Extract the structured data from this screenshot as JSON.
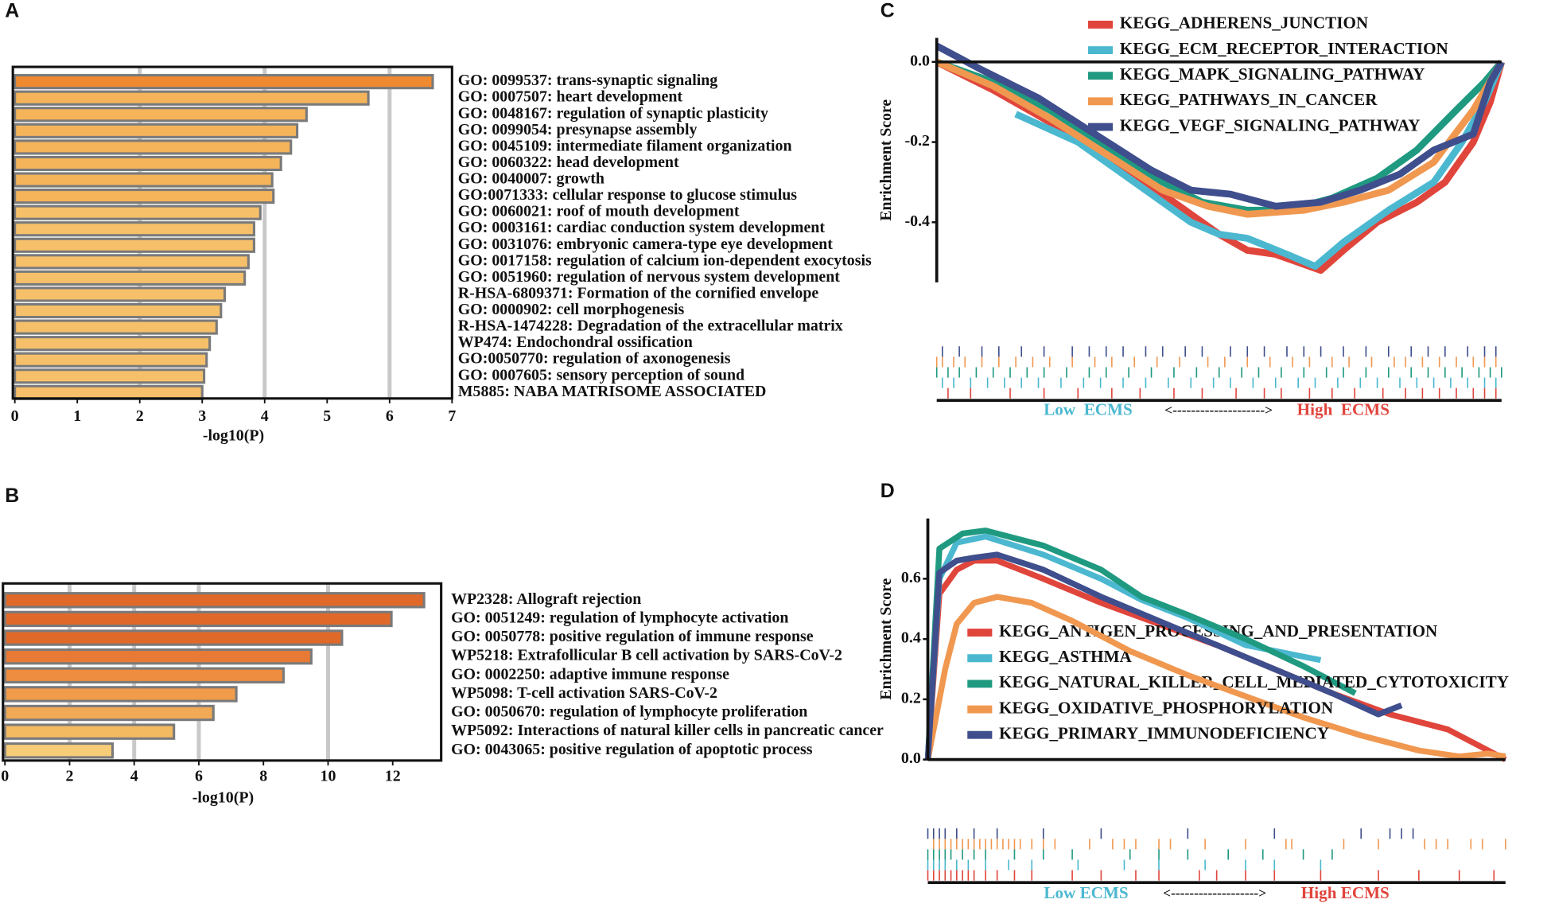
{
  "chart_data": [
    {
      "panel": "A",
      "type": "barh",
      "xlabel": "-log10(P)",
      "categories": [
        "GO: 0099537: trans-synaptic signaling",
        "GO: 0007507: heart development",
        "GO: 0048167: regulation of synaptic plasticity",
        "GO: 0099054: presynapse assembly",
        "GO: 0045109: intermediate filament organization",
        "GO: 0060322: head development",
        "GO: 0040007: growth",
        "GO:0071333: cellular response to glucose stimulus",
        "GO: 0060021: roof of mouth development",
        "GO: 0003161: cardiac conduction system development",
        "GO: 0031076: embryonic camera-type eye development",
        "GO: 0017158: regulation of calcium ion-dependent exocytosis",
        "GO: 0051960: regulation of nervous system development",
        "R-HSA-6809371: Formation of the cornified envelope",
        "GO: 0000902: cell morphogenesis",
        "R-HSA-1474228: Degradation of the extracellular matrix",
        "WP474: Endochondral ossification",
        "GO:0050770: regulation of axonogenesis",
        "GO: 0007605: sensory perception of sound",
        "M5885: NABA MATRISOME ASSOCIATED"
      ],
      "values": [
        6.69,
        5.66,
        4.67,
        4.52,
        4.42,
        4.26,
        4.12,
        4.14,
        3.93,
        3.83,
        3.83,
        3.74,
        3.68,
        3.36,
        3.3,
        3.23,
        3.12,
        3.07,
        3.03,
        3.0
      ],
      "colors": [
        "#f08a30",
        "#f5b45a",
        "#f5b45a",
        "#f5b45a",
        "#f5b45a",
        "#f5b45a",
        "#f5b45a",
        "#f5b45a",
        "#f6c06a",
        "#f6c06a",
        "#f6c06a",
        "#f6c06a",
        "#f6c06a",
        "#f6c06a",
        "#f6c06a",
        "#f6c06a",
        "#f6c06a",
        "#f6c06a",
        "#f6c06a",
        "#f6c06a"
      ],
      "xlim": [
        0,
        7
      ],
      "xticks": [
        0,
        1,
        2,
        3,
        4,
        5,
        6,
        7
      ],
      "gridlines": [
        2,
        4,
        6
      ]
    },
    {
      "panel": "B",
      "type": "barh",
      "xlabel": "-log10(P)",
      "categories": [
        "WP2328: Allograft rejection",
        "GO: 0051249: regulation of lymphocyte activation",
        "GO: 0050778: positive regulation of immune response",
        "WP5218: Extrafollicular B cell activation by SARS-CoV-2",
        "GO: 0002250: adaptive immune response",
        "WP5098: T-cell activation SARS-CoV-2",
        "GO: 0050670: regulation of lymphocyte proliferation",
        "WP5092: Interactions of natural killer cells in pancreatic cancer",
        "GO: 0043065: positive regulation of apoptotic process"
      ],
      "values": [
        12.97,
        11.96,
        10.43,
        9.48,
        8.62,
        7.16,
        6.45,
        5.23,
        3.33
      ],
      "colors": [
        "#e0692a",
        "#e0692a",
        "#e0692a",
        "#e87a35",
        "#ee8c3f",
        "#f09c4a",
        "#f2a955",
        "#f4ba62",
        "#f6cc78"
      ],
      "xlim": [
        0,
        13.5
      ],
      "xticks": [
        0,
        2,
        4,
        6,
        8,
        10,
        12
      ],
      "gridlines": [
        2,
        4,
        6,
        10
      ]
    },
    {
      "panel": "C",
      "type": "gsea",
      "ylabel": "Enrichment Score",
      "xlim": [
        0,
        100
      ],
      "ylim": [
        -0.55,
        0.06
      ],
      "yticks": [
        {
          "value": 0,
          "label": "0.0"
        },
        -0.2,
        -0.4
      ],
      "low_label": "Low  ECMS",
      "arrow_label": "<-------------------->",
      "high_label": "High  ECMS",
      "series": [
        {
          "name": "KEGG_ADHERENS_JUNCTION",
          "color": "#e0453c",
          "x": [
            0,
            10,
            20,
            30,
            40,
            50,
            55,
            60,
            64,
            68,
            72,
            78,
            85,
            90,
            95,
            98,
            100
          ],
          "values": [
            0,
            -0.07,
            -0.15,
            -0.24,
            -0.33,
            -0.43,
            -0.47,
            -0.48,
            -0.5,
            -0.52,
            -0.47,
            -0.4,
            -0.35,
            -0.3,
            -0.2,
            -0.1,
            0
          ],
          "hits": [
            2,
            6,
            13,
            19,
            25,
            31,
            36,
            42,
            47,
            53,
            58,
            61,
            66,
            70,
            74,
            79,
            83,
            86,
            89,
            92,
            95,
            97,
            99
          ]
        },
        {
          "name": "KEGG_ECM_RECEPTOR_INTERACTION",
          "color": "#4bb8d0",
          "x": [
            14,
            25,
            35,
            45,
            50,
            55,
            62,
            67,
            72,
            80,
            88,
            93,
            97,
            100
          ],
          "values": [
            -0.13,
            -0.2,
            -0.3,
            -0.4,
            -0.43,
            -0.44,
            -0.48,
            -0.51,
            -0.45,
            -0.37,
            -0.3,
            -0.2,
            -0.1,
            0
          ],
          "hits": [
            1,
            3,
            6,
            9,
            12,
            15,
            18,
            22,
            26,
            29,
            33,
            37,
            41,
            45,
            49,
            52,
            56,
            60,
            64,
            67,
            71,
            75,
            78,
            82,
            85,
            88,
            91,
            94,
            97,
            99
          ]
        },
        {
          "name": "KEGG_MAPK_SIGNALING_PATHWAY",
          "color": "#1f9a80",
          "x": [
            0,
            10,
            20,
            30,
            40,
            47,
            55,
            62,
            70,
            78,
            85,
            92,
            97,
            100
          ],
          "values": [
            0,
            -0.05,
            -0.12,
            -0.21,
            -0.3,
            -0.35,
            -0.37,
            -0.37,
            -0.34,
            -0.29,
            -0.22,
            -0.12,
            -0.05,
            0
          ],
          "hits": [
            0,
            2,
            4,
            7,
            10,
            13,
            16,
            19,
            23,
            27,
            30,
            34,
            38,
            42,
            46,
            50,
            54,
            57,
            61,
            65,
            69,
            72,
            76,
            80,
            84,
            87,
            90,
            93,
            96,
            98,
            100
          ]
        },
        {
          "name": "KEGG_PATHWAYS_IN_CANCER",
          "color": "#f09850",
          "x": [
            0,
            10,
            20,
            30,
            40,
            48,
            55,
            65,
            72,
            80,
            88,
            95,
            100
          ],
          "values": [
            0,
            -0.06,
            -0.14,
            -0.23,
            -0.32,
            -0.36,
            -0.38,
            -0.37,
            -0.35,
            -0.32,
            -0.25,
            -0.12,
            0
          ],
          "hits": [
            0,
            1,
            3,
            5,
            8,
            11,
            14,
            17,
            20,
            24,
            28,
            31,
            35,
            39,
            43,
            48,
            51,
            55,
            59,
            63,
            66,
            70,
            73,
            77,
            81,
            83,
            86,
            89,
            92,
            95,
            97,
            99
          ]
        },
        {
          "name": "KEGG_VEGF_SIGNALING_PATHWAY",
          "color": "#3f4e8c",
          "x": [
            0,
            8,
            18,
            28,
            38,
            45,
            52,
            60,
            68,
            75,
            82,
            88,
            95,
            98,
            100
          ],
          "values": [
            0.04,
            -0.02,
            -0.09,
            -0.18,
            -0.27,
            -0.32,
            -0.33,
            -0.36,
            -0.35,
            -0.32,
            -0.28,
            -0.22,
            -0.18,
            -0.05,
            0
          ],
          "hits": [
            1,
            4,
            8,
            11,
            15,
            19,
            24,
            27,
            30,
            33,
            37,
            40,
            44,
            47,
            52,
            55,
            58,
            62,
            65,
            68,
            72,
            76,
            80,
            84,
            87,
            90,
            94,
            97,
            99
          ]
        }
      ]
    },
    {
      "panel": "D",
      "type": "gsea",
      "ylabel": "Enrichment Score",
      "xlim": [
        0,
        100
      ],
      "ylim": [
        0,
        0.8
      ],
      "yticks": [
        {
          "value": 0,
          "label": "0.0"
        },
        0.2,
        0.4,
        0.6
      ],
      "low_label": "Low ECMS",
      "arrow_label": "<------------------->",
      "high_label": "High ECMS",
      "series": [
        {
          "name": "KEGG_ANTIGEN_PROCESSING_AND_PRESENTATION",
          "color": "#e0453c",
          "x": [
            0,
            2,
            5,
            8,
            12,
            20,
            30,
            40,
            50,
            60,
            70,
            80,
            90,
            97,
            100
          ],
          "values": [
            0,
            0.55,
            0.63,
            0.66,
            0.66,
            0.6,
            0.52,
            0.45,
            0.38,
            0.3,
            0.22,
            0.15,
            0.1,
            0.03,
            0
          ],
          "hits": [
            0,
            1,
            2,
            3,
            4,
            5,
            6,
            7,
            8,
            10,
            12,
            15,
            18,
            25,
            30,
            36,
            40,
            47,
            50,
            55,
            60,
            68,
            78,
            85,
            92,
            98
          ]
        },
        {
          "name": "KEGG_ASTHMA",
          "color": "#4bb8d0",
          "x": [
            0,
            2,
            5,
            10,
            20,
            30,
            37,
            45,
            55,
            68
          ],
          "values": [
            0,
            0.6,
            0.72,
            0.74,
            0.68,
            0.6,
            0.53,
            0.47,
            0.38,
            0.33
          ],
          "hits": [
            0,
            1,
            2,
            3,
            5,
            7,
            10,
            14,
            18,
            26,
            34,
            40,
            48,
            55,
            60,
            68
          ]
        },
        {
          "name": "KEGG_NATURAL_KILLER_CELL_MEDIATED_CYTOTOXICITY",
          "color": "#1f9a80",
          "x": [
            0,
            2,
            6,
            10,
            20,
            30,
            37,
            45,
            55,
            65,
            74
          ],
          "values": [
            0,
            0.7,
            0.75,
            0.76,
            0.71,
            0.63,
            0.54,
            0.48,
            0.4,
            0.31,
            0.22
          ],
          "hits": [
            0,
            1,
            2,
            3,
            4,
            6,
            8,
            10,
            15,
            20,
            25,
            35,
            40,
            45,
            52,
            58,
            65,
            70
          ]
        },
        {
          "name": "KEGG_OXIDATIVE_PHOSPHORYLATION",
          "color": "#f09850",
          "x": [
            0,
            3,
            5,
            8,
            12,
            18,
            25,
            35,
            45,
            55,
            65,
            75,
            85,
            92,
            97,
            100
          ],
          "values": [
            0,
            0.3,
            0.45,
            0.52,
            0.54,
            0.52,
            0.46,
            0.36,
            0.28,
            0.21,
            0.14,
            0.08,
            0.03,
            0.01,
            0.02,
            0.01
          ],
          "hits": [
            1,
            2,
            3,
            4,
            5,
            6,
            7,
            8,
            9,
            10,
            11,
            12,
            13,
            14,
            15,
            16,
            18,
            20,
            22,
            28,
            32,
            34,
            36,
            40,
            42,
            48,
            55,
            62,
            63,
            72,
            78,
            86,
            88,
            90,
            94,
            96,
            100
          ]
        },
        {
          "name": "KEGG_PRIMARY_IMMUNODEFICIENCY",
          "color": "#3f4e8c",
          "x": [
            0,
            2,
            5,
            8,
            12,
            20,
            30,
            40,
            50,
            60,
            70,
            78,
            82
          ],
          "values": [
            0,
            0.62,
            0.66,
            0.67,
            0.68,
            0.63,
            0.54,
            0.46,
            0.38,
            0.3,
            0.22,
            0.15,
            0.18
          ],
          "hits": [
            0,
            1,
            2,
            3,
            5,
            8,
            12,
            20,
            30,
            45,
            60,
            75,
            80,
            82,
            84
          ]
        }
      ]
    }
  ]
}
